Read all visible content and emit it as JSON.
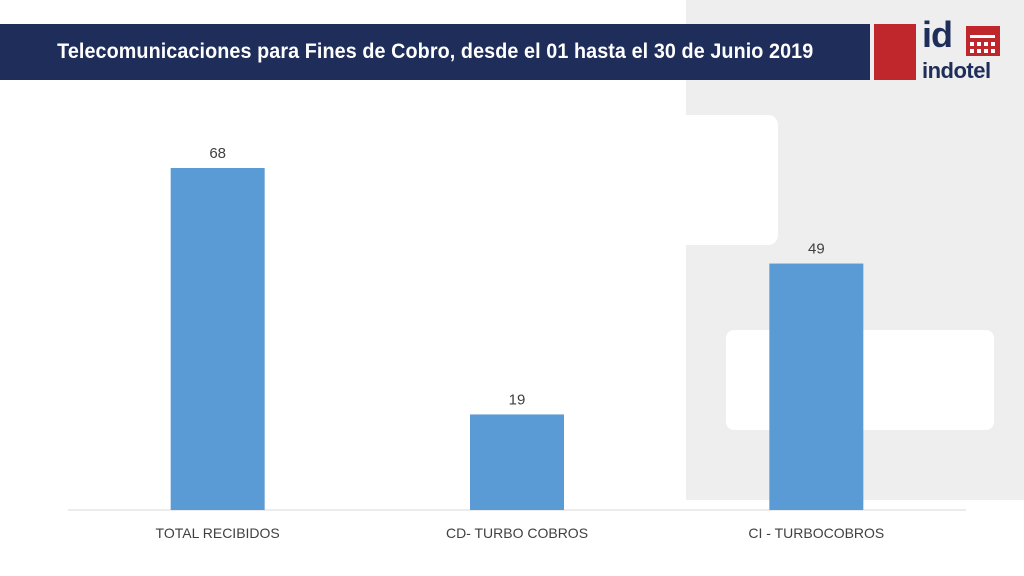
{
  "header": {
    "title": "Telecomunicaciones para Fines de Cobro, desde el 01 hasta el 30 de Junio 2019"
  },
  "logo": {
    "mark": "id",
    "name": "indotel"
  },
  "colors": {
    "title_bg": "#1e2d5a",
    "bar": "#5b9bd5",
    "brand_red": "#c0272d"
  },
  "chart_data": {
    "type": "bar",
    "title": "Telecomunicaciones para Fines de Cobro, desde el 01 hasta el 30 de Junio 2019",
    "categories": [
      "TOTAL RECIBIDOS",
      "CD- TURBO COBROS",
      "CI - TURBOCOBROS"
    ],
    "values": [
      68,
      19,
      49
    ],
    "xlabel": "",
    "ylabel": "",
    "ylim": [
      0,
      68
    ],
    "grid": false,
    "legend": "none"
  }
}
